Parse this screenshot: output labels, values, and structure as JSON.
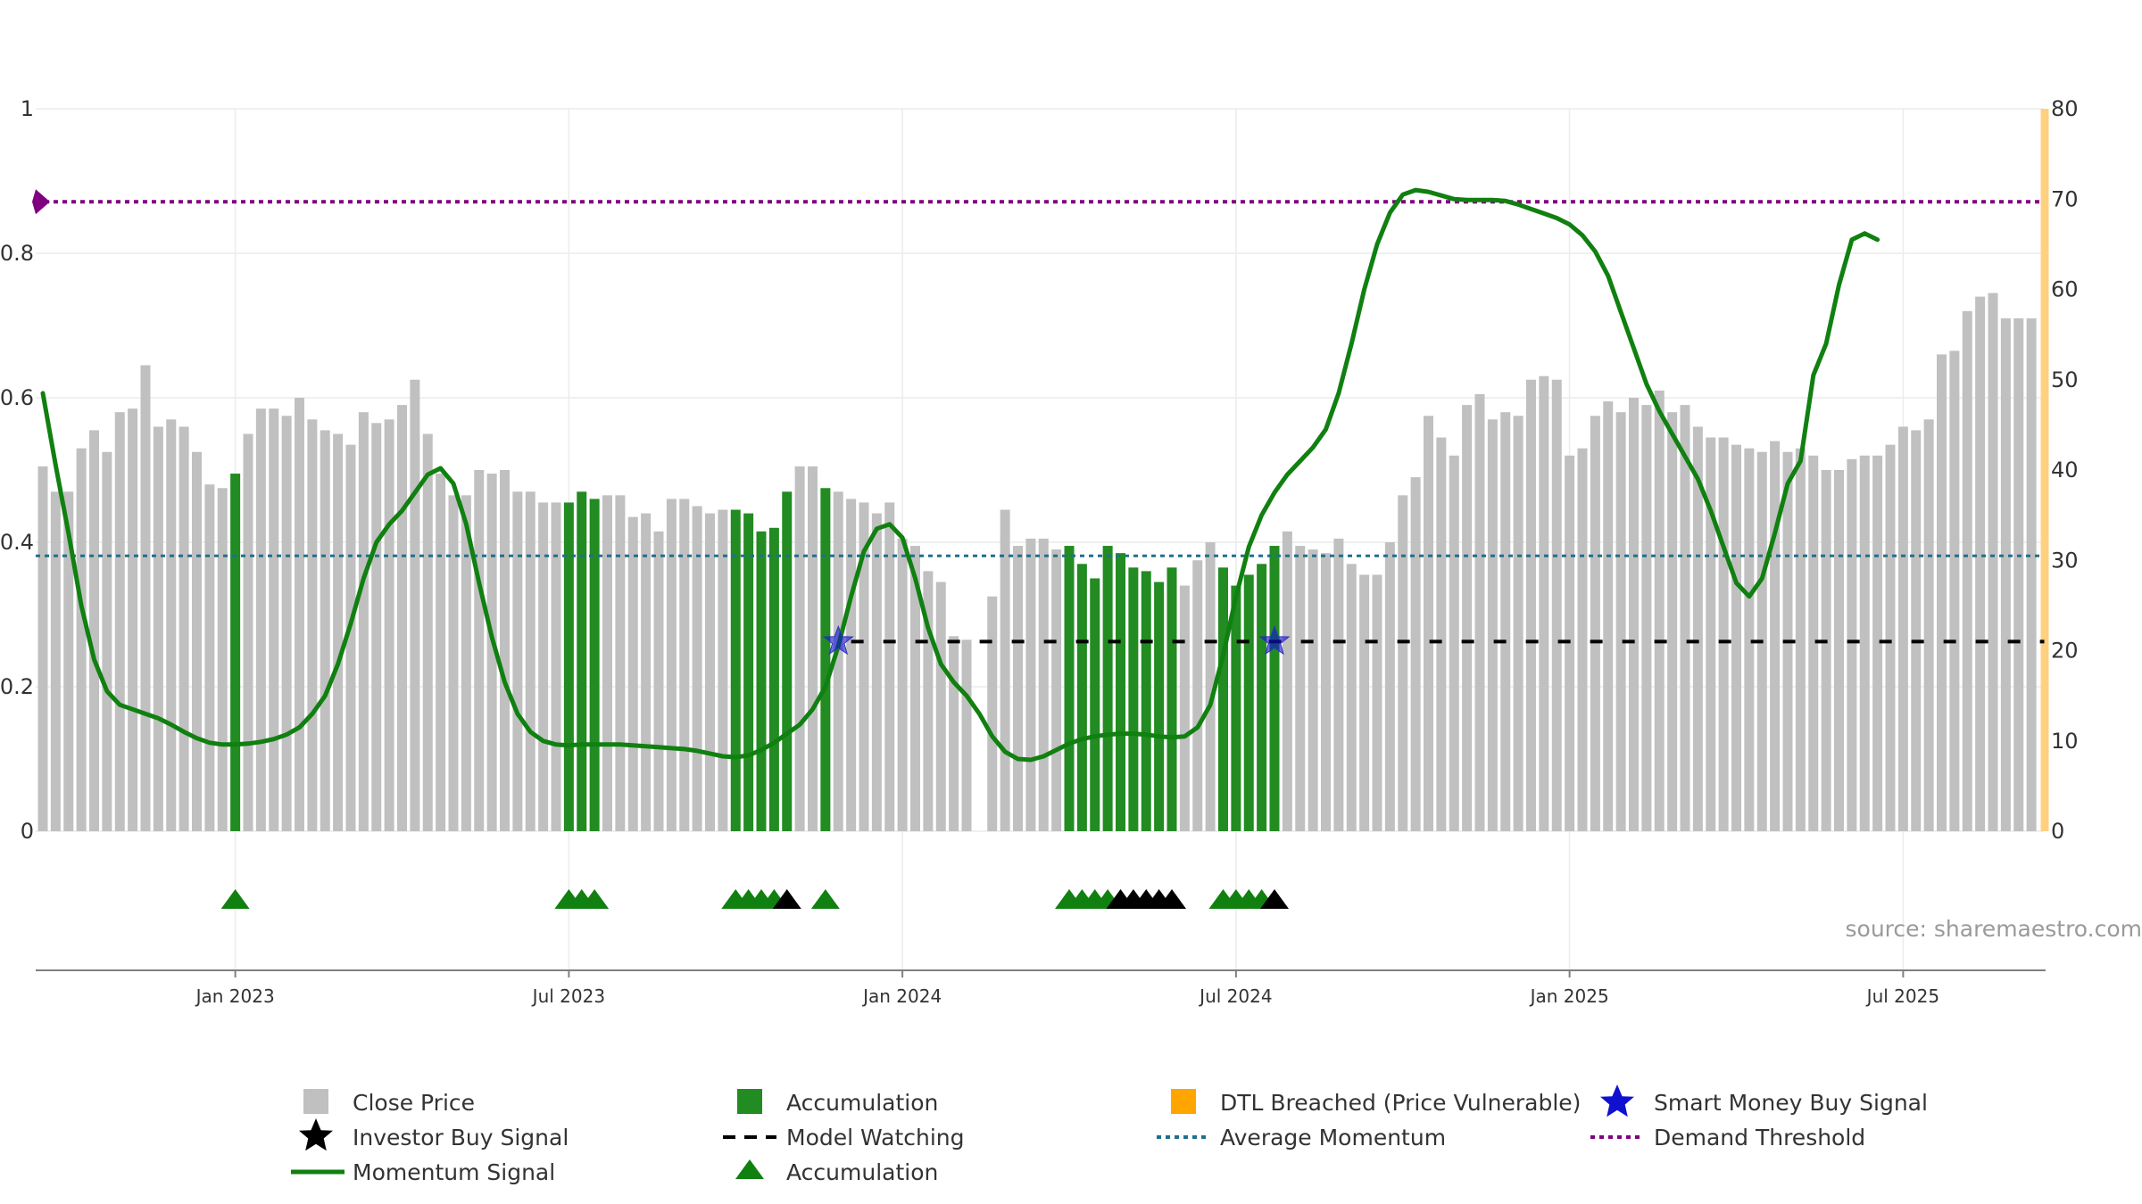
{
  "chart_data": {
    "type": "bar",
    "source": "source: sharemaestro.com",
    "left_axis": {
      "range": [
        0,
        1
      ],
      "ticks": [
        "0",
        "0.2",
        "0.4",
        "0.6",
        "0.8",
        "1"
      ],
      "tick_values": [
        0,
        0.2,
        0.4,
        0.6,
        0.8,
        1
      ]
    },
    "right_axis": {
      "range": [
        0,
        80
      ],
      "ticks": [
        "0",
        "10",
        "20",
        "30",
        "40",
        "50",
        "60",
        "70",
        "80"
      ],
      "tick_values": [
        0,
        10,
        20,
        30,
        40,
        50,
        60,
        70,
        80
      ]
    },
    "x_axis": {
      "ticks": [
        "Jan 2023",
        "Jul 2023",
        "Jan 2024",
        "Jul 2024",
        "Jan 2025",
        "Jul 2025"
      ],
      "tick_bar_index": [
        15,
        41,
        67,
        93,
        119,
        145
      ]
    },
    "bar_count": 157,
    "close_price": [
      0.505,
      0.47,
      0.47,
      0.53,
      0.555,
      0.525,
      0.58,
      0.585,
      0.645,
      0.56,
      0.57,
      0.56,
      0.525,
      0.48,
      0.475,
      0.495,
      0.55,
      0.585,
      0.585,
      0.575,
      0.6,
      0.57,
      0.555,
      0.55,
      0.535,
      0.58,
      0.565,
      0.57,
      0.59,
      0.625,
      0.55,
      0.495,
      0.465,
      0.465,
      0.5,
      0.495,
      0.5,
      0.47,
      0.47,
      0.455,
      0.455,
      0.455,
      0.47,
      0.46,
      0.465,
      0.465,
      0.435,
      0.44,
      0.415,
      0.46,
      0.46,
      0.45,
      0.44,
      0.445,
      0.445,
      0.44,
      0.415,
      0.42,
      0.47,
      0.505,
      0.505,
      0.475,
      0.47,
      0.46,
      0.455,
      0.44,
      0.455,
      0.405,
      0.395,
      0.36,
      0.345,
      0.27,
      0.265,
      0,
      0.325,
      0.445,
      0.395,
      0.405,
      0.405,
      0.39,
      0.395,
      0.37,
      0.35,
      0.395,
      0.385,
      0.365,
      0.36,
      0.345,
      0.365,
      0.34,
      0.375,
      0.4,
      0.365,
      0.34,
      0.355,
      0.37,
      0.395,
      0.415,
      0.395,
      0.39,
      0.385,
      0.405,
      0.37,
      0.355,
      0.355,
      0.4,
      0.465,
      0.49,
      0.575,
      0.545,
      0.52,
      0.59,
      0.605,
      0.57,
      0.58,
      0.575,
      0.625,
      0.63,
      0.625,
      0.52,
      0.53,
      0.575,
      0.595,
      0.58,
      0.6,
      0.59,
      0.61,
      0.58,
      0.59,
      0.56,
      0.545,
      0.545,
      0.535,
      0.53,
      0.525,
      0.54,
      0.525,
      0.53,
      0.52,
      0.5,
      0.5,
      0.515,
      0.52,
      0.52,
      0.535,
      0.56,
      0.555,
      0.57,
      0.66,
      0.665,
      0.72,
      0.74,
      0.745,
      0.71,
      0.71,
      0.71
    ],
    "accumulation_bars": [
      15,
      41,
      42,
      43,
      54,
      55,
      56,
      57,
      58,
      61,
      80,
      81,
      82,
      83,
      84,
      85,
      86,
      87,
      88,
      92,
      93,
      94,
      95,
      96
    ],
    "accumulation_markers": [
      15,
      41,
      42,
      43,
      54,
      55,
      56,
      57,
      61,
      80,
      81,
      82,
      83,
      92,
      93,
      94,
      95
    ],
    "investor_buy_markers": [
      58,
      84,
      85,
      86,
      87,
      88,
      96
    ],
    "smart_money_buy_signals": [
      {
        "bar": 62,
        "value": 21
      },
      {
        "bar": 96,
        "value": 21
      }
    ],
    "model_watching": {
      "from_bar": 63,
      "to_bar": 156,
      "value": 21
    },
    "average_momentum": 30.5,
    "demand_threshold": 69.7,
    "dtl_breached": {
      "bar": 156,
      "level": 80
    },
    "momentum_signal": [
      [
        0,
        48.5
      ],
      [
        1,
        40.5
      ],
      [
        2,
        33
      ],
      [
        3,
        25
      ],
      [
        4,
        19
      ],
      [
        5,
        15.5
      ],
      [
        6,
        14
      ],
      [
        7,
        13.5
      ],
      [
        8,
        13
      ],
      [
        9,
        12.5
      ],
      [
        10,
        11.8
      ],
      [
        11,
        11
      ],
      [
        12,
        10.3
      ],
      [
        13,
        9.8
      ],
      [
        14,
        9.6
      ],
      [
        15,
        9.6
      ],
      [
        16,
        9.7
      ],
      [
        17,
        9.9
      ],
      [
        18,
        10.2
      ],
      [
        19,
        10.7
      ],
      [
        20,
        11.5
      ],
      [
        21,
        13
      ],
      [
        22,
        15
      ],
      [
        23,
        18.5
      ],
      [
        24,
        23
      ],
      [
        25,
        28
      ],
      [
        26,
        32
      ],
      [
        27,
        34
      ],
      [
        28,
        35.5
      ],
      [
        29,
        37.5
      ],
      [
        30,
        39.5
      ],
      [
        31,
        40.2
      ],
      [
        32,
        38.5
      ],
      [
        33,
        34
      ],
      [
        34,
        27.5
      ],
      [
        35,
        21.5
      ],
      [
        36,
        16.5
      ],
      [
        37,
        13
      ],
      [
        38,
        11
      ],
      [
        39,
        10
      ],
      [
        40,
        9.6
      ],
      [
        41,
        9.5
      ],
      [
        42,
        9.6
      ],
      [
        43,
        9.6
      ],
      [
        44,
        9.6
      ],
      [
        45,
        9.6
      ],
      [
        46,
        9.5
      ],
      [
        47,
        9.4
      ],
      [
        48,
        9.3
      ],
      [
        49,
        9.2
      ],
      [
        50,
        9.1
      ],
      [
        51,
        8.9
      ],
      [
        52,
        8.6
      ],
      [
        53,
        8.3
      ],
      [
        54,
        8.2
      ],
      [
        55,
        8.4
      ],
      [
        56,
        9
      ],
      [
        57,
        9.8
      ],
      [
        58,
        10.8
      ],
      [
        59,
        11.8
      ],
      [
        60,
        13.5
      ],
      [
        61,
        16
      ],
      [
        62,
        20.5
      ],
      [
        63,
        26
      ],
      [
        64,
        31
      ],
      [
        65,
        33.5
      ],
      [
        66,
        34
      ],
      [
        67,
        32.5
      ],
      [
        68,
        28
      ],
      [
        69,
        22.5
      ],
      [
        70,
        18.5
      ],
      [
        71,
        16.5
      ],
      [
        72,
        15
      ],
      [
        73,
        13
      ],
      [
        74,
        10.5
      ],
      [
        75,
        8.8
      ],
      [
        76,
        8
      ],
      [
        77,
        7.9
      ],
      [
        78,
        8.3
      ],
      [
        79,
        9
      ],
      [
        80,
        9.7
      ],
      [
        81,
        10.2
      ],
      [
        82,
        10.5
      ],
      [
        83,
        10.7
      ],
      [
        84,
        10.8
      ],
      [
        85,
        10.8
      ],
      [
        86,
        10.7
      ],
      [
        87,
        10.5
      ],
      [
        88,
        10.4
      ],
      [
        89,
        10.5
      ],
      [
        90,
        11.5
      ],
      [
        91,
        14
      ],
      [
        92,
        19.5
      ],
      [
        93,
        26
      ],
      [
        94,
        31.5
      ],
      [
        95,
        35
      ],
      [
        96,
        37.5
      ],
      [
        97,
        39.5
      ],
      [
        98,
        41
      ],
      [
        99,
        42.5
      ],
      [
        100,
        44.5
      ],
      [
        101,
        48.5
      ],
      [
        102,
        54
      ],
      [
        103,
        60
      ],
      [
        104,
        65
      ],
      [
        105,
        68.5
      ],
      [
        106,
        70.5
      ],
      [
        107,
        71
      ],
      [
        108,
        70.8
      ],
      [
        109,
        70.4
      ],
      [
        110,
        70
      ],
      [
        111,
        69.9
      ],
      [
        112,
        69.9
      ],
      [
        113,
        69.9
      ],
      [
        114,
        69.8
      ],
      [
        115,
        69.4
      ],
      [
        116,
        68.9
      ],
      [
        117,
        68.4
      ],
      [
        118,
        67.9
      ],
      [
        119,
        67.2
      ],
      [
        120,
        66
      ],
      [
        121,
        64.2
      ],
      [
        122,
        61.5
      ],
      [
        123,
        57.5
      ],
      [
        124,
        53.5
      ],
      [
        125,
        49.5
      ],
      [
        126,
        46.5
      ],
      [
        127,
        44
      ],
      [
        128,
        41.5
      ],
      [
        129,
        39
      ],
      [
        130,
        35.5
      ],
      [
        131,
        31.5
      ],
      [
        132,
        27.5
      ],
      [
        133,
        26
      ],
      [
        134,
        28
      ],
      [
        135,
        33
      ],
      [
        136,
        38.5
      ],
      [
        137,
        41
      ],
      [
        138,
        50.5
      ],
      [
        139,
        54
      ],
      [
        140,
        60.5
      ],
      [
        141,
        65.5
      ],
      [
        142,
        66.2
      ],
      [
        143,
        65.5
      ]
    ]
  },
  "legend": {
    "close_price": "Close Price",
    "accumulation_bar": "Accumulation",
    "dtl_breached": "DTL Breached (Price Vulnerable)",
    "smart_money": "Smart Money Buy Signal",
    "investor_buy": "Investor Buy Signal",
    "model_watching": "Model Watching",
    "average_momentum": "Average Momentum",
    "demand_threshold": "Demand Threshold",
    "momentum_signal": "Momentum Signal",
    "accumulation_marker": "Accumulation"
  },
  "colors": {
    "close_price": "#c0c0c0",
    "accumulation": "#228b22",
    "momentum": "#108010",
    "dtl": "#ffa500",
    "dtl_bar": "#ffd080",
    "smart_money": "#1010d0",
    "investor": "#000000",
    "average_momentum": "#1f6f8f",
    "demand_threshold": "#800080",
    "grid": "#ececec"
  }
}
